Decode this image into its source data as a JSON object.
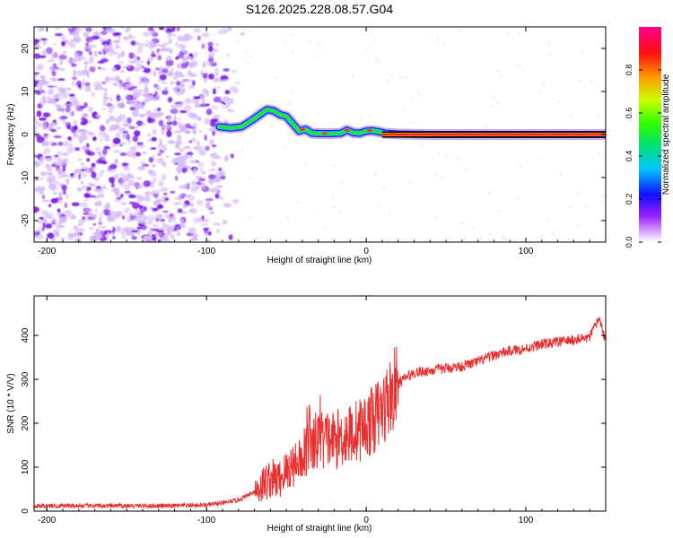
{
  "title": "S126.2025.228.08.57.G04",
  "colors": {
    "axis": "#000000",
    "snr_line": "#e83030",
    "speckle_dark": "#7a18e6",
    "speckle_light": "#d4b8f7",
    "band_core": "#ff1a1a",
    "band_edge": "#2020ff"
  },
  "chart_data": [
    {
      "id": "spectrogram",
      "type": "heatmap",
      "title": "S126.2025.228.08.57.G04",
      "xlabel": "Height of straight line (km)",
      "ylabel": "Frequency (Hz)",
      "xlim": [
        -208,
        150
      ],
      "ylim": [
        -25,
        25
      ],
      "xticks": [
        -200,
        -100,
        0,
        100
      ],
      "yticks": [
        -20,
        -10,
        0,
        10,
        20
      ],
      "xtick_labels": [
        "-200",
        "-100",
        "0",
        "100"
      ],
      "ytick_labels": [
        "-20",
        "-10",
        "0",
        "10",
        "20"
      ],
      "grid": false,
      "noise_region_x": [
        -208,
        -80
      ],
      "band_trace": {
        "x": [
          -92,
          -85,
          -78,
          -72,
          -66,
          -62,
          -58,
          -54,
          -50,
          -46,
          -42,
          -38,
          -34,
          -28,
          -22,
          -16,
          -12,
          -8,
          -4,
          0,
          4,
          8,
          12,
          20,
          40,
          80,
          150
        ],
        "y": [
          1.8,
          1.5,
          1.8,
          3.2,
          4.8,
          5.8,
          5.5,
          4.6,
          4.2,
          2.5,
          0.8,
          1.2,
          0.3,
          0.2,
          0.2,
          0.3,
          1.0,
          0.4,
          0.3,
          0.8,
          0.9,
          0.6,
          0.3,
          0.1,
          0.0,
          0.0,
          0.0
        ]
      },
      "colorbar": {
        "label": "Normalized spectral amplitude",
        "range": [
          0,
          1
        ],
        "ticks": [
          0.0,
          0.2,
          0.4,
          0.6,
          0.8
        ],
        "tick_labels": [
          "0.0",
          "0.2",
          "0.4",
          "0.6",
          "0.8"
        ]
      }
    },
    {
      "id": "snr",
      "type": "line",
      "xlabel": "Height of straight line (km)",
      "ylabel": "SNR (10 * V/V)",
      "xlim": [
        -208,
        150
      ],
      "ylim": [
        0,
        490
      ],
      "xticks": [
        -200,
        -100,
        0,
        100
      ],
      "yticks": [
        0,
        100,
        200,
        300,
        400
      ],
      "xtick_labels": [
        "-200",
        "-100",
        "0",
        "100"
      ],
      "ytick_labels": [
        "0",
        "100",
        "200",
        "300",
        "400"
      ],
      "grid": false,
      "series": [
        {
          "name": "SNR",
          "x": [
            -208,
            -180,
            -150,
            -120,
            -100,
            -90,
            -80,
            -70,
            -65,
            -60,
            -55,
            -50,
            -45,
            -40,
            -35,
            -30,
            -25,
            -20,
            -15,
            -10,
            -5,
            0,
            5,
            10,
            15,
            20,
            25,
            30,
            40,
            50,
            60,
            70,
            80,
            90,
            100,
            110,
            120,
            130,
            140,
            146,
            150
          ],
          "y": [
            12,
            12,
            12,
            12,
            14,
            18,
            25,
            45,
            60,
            75,
            70,
            90,
            110,
            130,
            155,
            160,
            165,
            160,
            170,
            175,
            185,
            195,
            210,
            230,
            260,
            290,
            305,
            315,
            320,
            325,
            330,
            340,
            355,
            365,
            370,
            380,
            385,
            390,
            395,
            440,
            385
          ]
        }
      ]
    }
  ]
}
